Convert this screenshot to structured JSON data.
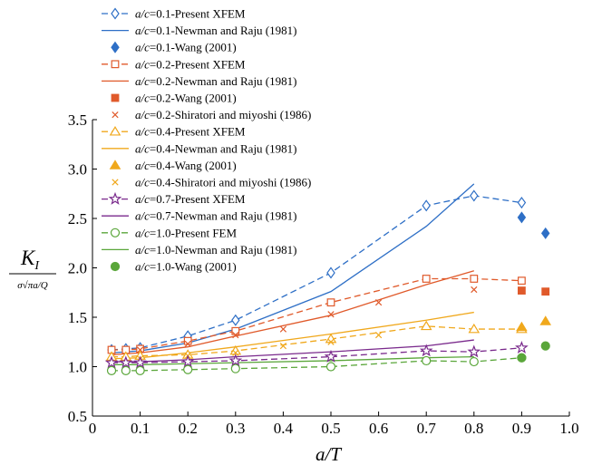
{
  "chart_data": {
    "type": "line",
    "title": "",
    "xlabel": "a/T",
    "ylabel_main": "K",
    "ylabel_sub": "I",
    "ylabel_denominator": "σ√πa/Q",
    "xlim": [
      0,
      1.0
    ],
    "ylim": [
      0.5,
      3.5
    ],
    "x_ticks": [
      "0",
      "0.1",
      "0.2",
      "0.3",
      "0.4",
      "0.5",
      "0.6",
      "0.7",
      "0.8",
      "0.9",
      "1.0"
    ],
    "y_ticks": [
      "0.5",
      "1.0",
      "1.5",
      "2.0",
      "2.5",
      "3.0",
      "3.5"
    ],
    "grid": false,
    "legend_position": "top-left",
    "series": [
      {
        "name": "a/c=0.1-Present XFEM",
        "color": "#2e6fc6",
        "style": "dashed",
        "marker": "diamond-open",
        "x": [
          0.04,
          0.07,
          0.1,
          0.2,
          0.3,
          0.5,
          0.7,
          0.8,
          0.9
        ],
        "y": [
          1.17,
          1.18,
          1.19,
          1.31,
          1.47,
          1.95,
          2.63,
          2.73,
          2.66
        ]
      },
      {
        "name": "a/c=0.1-Newman and Raju (1981)",
        "color": "#2e6fc6",
        "style": "solid",
        "marker": "none",
        "x": [
          0.04,
          0.1,
          0.2,
          0.3,
          0.5,
          0.7,
          0.8
        ],
        "y": [
          1.14,
          1.16,
          1.24,
          1.38,
          1.76,
          2.42,
          2.85
        ]
      },
      {
        "name": "a/c=0.1-Wang (2001)",
        "color": "#2e6fc6",
        "style": "none",
        "marker": "diamond-filled",
        "x": [
          0.9,
          0.95
        ],
        "y": [
          2.51,
          2.35
        ]
      },
      {
        "name": "a/c=0.2-Present XFEM",
        "color": "#e05a2b",
        "style": "dashed",
        "marker": "square-open",
        "x": [
          0.04,
          0.07,
          0.1,
          0.2,
          0.3,
          0.5,
          0.7,
          0.8,
          0.9
        ],
        "y": [
          1.17,
          1.17,
          1.18,
          1.26,
          1.36,
          1.65,
          1.89,
          1.89,
          1.87
        ]
      },
      {
        "name": "a/c=0.2-Newman and Raju (1981)",
        "color": "#e05a2b",
        "style": "solid",
        "marker": "none",
        "x": [
          0.04,
          0.1,
          0.2,
          0.3,
          0.5,
          0.7,
          0.8
        ],
        "y": [
          1.12,
          1.14,
          1.2,
          1.31,
          1.52,
          1.83,
          1.97
        ]
      },
      {
        "name": "a/c=0.2-Wang (2001)",
        "color": "#e05a2b",
        "style": "none",
        "marker": "square-filled",
        "x": [
          0.9,
          0.95
        ],
        "y": [
          1.77,
          1.76
        ]
      },
      {
        "name": "a/c=0.2-Shiratori and miyoshi (1986)",
        "color": "#e05a2b",
        "style": "none",
        "marker": "x",
        "x": [
          0.1,
          0.2,
          0.3,
          0.4,
          0.5,
          0.6,
          0.8
        ],
        "y": [
          1.17,
          1.23,
          1.32,
          1.38,
          1.53,
          1.65,
          1.78
        ]
      },
      {
        "name": "a/c=0.4-Present XFEM",
        "color": "#f0a81c",
        "style": "dashed",
        "marker": "triangle-open",
        "x": [
          0.04,
          0.07,
          0.1,
          0.2,
          0.3,
          0.5,
          0.7,
          0.8,
          0.9
        ],
        "y": [
          1.1,
          1.1,
          1.11,
          1.12,
          1.16,
          1.28,
          1.41,
          1.38,
          1.38
        ]
      },
      {
        "name": "a/c=0.4-Newman and Raju (1981)",
        "color": "#f0a81c",
        "style": "solid",
        "marker": "none",
        "x": [
          0.04,
          0.1,
          0.2,
          0.3,
          0.5,
          0.7,
          0.8
        ],
        "y": [
          1.08,
          1.09,
          1.14,
          1.2,
          1.33,
          1.47,
          1.55
        ]
      },
      {
        "name": "a/c=0.4-Wang (2001)",
        "color": "#f0a81c",
        "style": "none",
        "marker": "triangle-filled",
        "x": [
          0.9,
          0.95
        ],
        "y": [
          1.4,
          1.46
        ]
      },
      {
        "name": "a/c=0.4-Shiratori and miyoshi (1986)",
        "color": "#f0a81c",
        "style": "none",
        "marker": "x",
        "x": [
          0.1,
          0.2,
          0.3,
          0.4,
          0.5,
          0.6
        ],
        "y": [
          1.08,
          1.11,
          1.14,
          1.21,
          1.25,
          1.32
        ]
      },
      {
        "name": "a/c=0.7-Present XFEM",
        "color": "#7a2a8c",
        "style": "dashed",
        "marker": "star-open",
        "x": [
          0.04,
          0.07,
          0.1,
          0.2,
          0.3,
          0.5,
          0.7,
          0.8,
          0.9
        ],
        "y": [
          1.04,
          1.04,
          1.04,
          1.05,
          1.06,
          1.1,
          1.16,
          1.15,
          1.19
        ]
      },
      {
        "name": "a/c=0.7-Newman and Raju (1981)",
        "color": "#7a2a8c",
        "style": "solid",
        "marker": "none",
        "x": [
          0.04,
          0.1,
          0.2,
          0.3,
          0.5,
          0.7,
          0.8
        ],
        "y": [
          1.05,
          1.05,
          1.07,
          1.1,
          1.15,
          1.21,
          1.27
        ]
      },
      {
        "name": "a/c=1.0-Present FEM",
        "color": "#5aa63a",
        "style": "dashed",
        "marker": "circle-open",
        "x": [
          0.04,
          0.07,
          0.1,
          0.2,
          0.3,
          0.5,
          0.7,
          0.8,
          0.9
        ],
        "y": [
          0.96,
          0.96,
          0.96,
          0.97,
          0.98,
          1.0,
          1.06,
          1.05,
          1.09
        ]
      },
      {
        "name": "a/c=1.0-Newman and Raju (1981)",
        "color": "#5aa63a",
        "style": "solid",
        "marker": "none",
        "x": [
          0.04,
          0.1,
          0.2,
          0.3,
          0.5,
          0.7,
          0.8
        ],
        "y": [
          1.02,
          1.02,
          1.03,
          1.04,
          1.06,
          1.09,
          1.1
        ]
      },
      {
        "name": "a/c=1.0-Wang (2001)",
        "color": "#5aa63a",
        "style": "none",
        "marker": "circle-filled",
        "x": [
          0.9,
          0.95
        ],
        "y": [
          1.09,
          1.21
        ]
      }
    ]
  }
}
